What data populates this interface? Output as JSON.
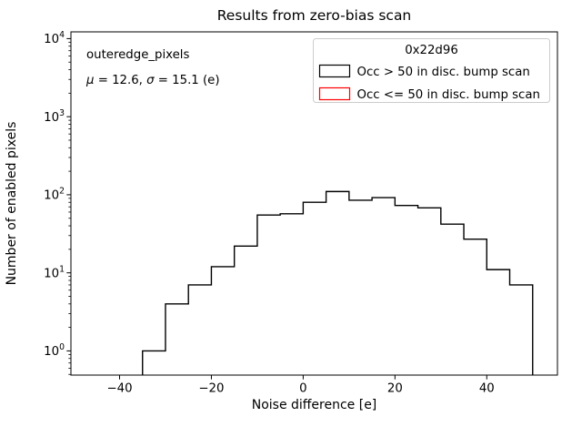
{
  "figure": {
    "title": "Results from zero-bias scan",
    "background_color": "#ffffff",
    "axes_color": "#000000"
  },
  "annotation": {
    "line1": "outeredge_pixels",
    "line2": "μ = 12.6, σ = 15.1 (e)",
    "line2_segments": [
      {
        "t": "μ",
        "italic": true
      },
      {
        "t": " = 12.6, ",
        "italic": false
      },
      {
        "t": "σ",
        "italic": true
      },
      {
        "t": " = 15.1 (e)",
        "italic": false
      }
    ]
  },
  "legend": {
    "title": "0x22d96",
    "border_color": "#cccccc",
    "background_color": "#ffffff",
    "entries": [
      {
        "label": "Occ > 50 in disc. bump scan",
        "swatch_edge_color": "#000000",
        "swatch_fill": "#ffffff"
      },
      {
        "label": "Occ <= 50 in disc. bump scan",
        "swatch_edge_color": "#ff0000",
        "swatch_fill": "#ffffff"
      }
    ]
  },
  "chart_data": {
    "type": "histogram-step",
    "title": "Results from zero-bias scan",
    "xlabel": "Noise difference [e]",
    "ylabel": "Number of enabled pixels",
    "yscale": "log",
    "grid": false,
    "legend_position": "upper right",
    "line_color": "#000000",
    "line_width": 1.4,
    "bin_width": 5,
    "bin_edges": [
      -35,
      -30,
      -25,
      -20,
      -15,
      -10,
      -5,
      0,
      5,
      10,
      15,
      20,
      25,
      30,
      35,
      40,
      45,
      50
    ],
    "counts": [
      1,
      4,
      7,
      12,
      22,
      55,
      57,
      80,
      110,
      85,
      92,
      73,
      68,
      42,
      27,
      11,
      7
    ],
    "xlim": [
      -50.6,
      55.4
    ],
    "ylim": [
      0.49,
      12200
    ],
    "x_ticks": [
      -40,
      -20,
      0,
      20,
      40
    ],
    "x_tick_labels": [
      "−40",
      "−20",
      "0",
      "20",
      "40"
    ],
    "y_tick_exponents": [
      0,
      1,
      2,
      3,
      4
    ],
    "y_tick_labels": [
      "10^0",
      "10^1",
      "10^2",
      "10^3",
      "10^4"
    ]
  }
}
